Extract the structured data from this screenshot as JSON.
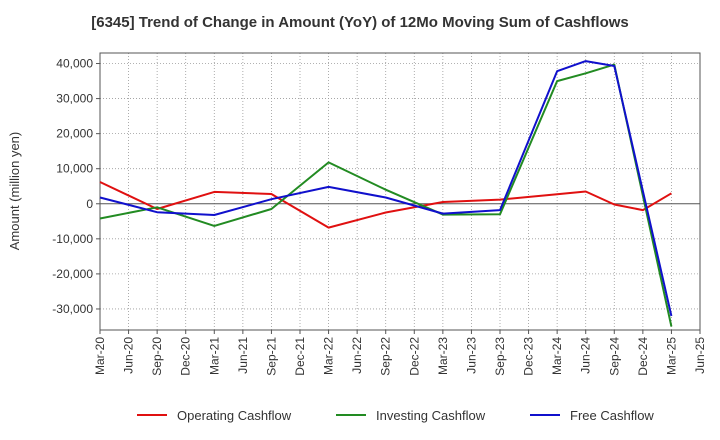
{
  "chart_data": {
    "type": "line",
    "title": "[6345]  Trend of Change in Amount (YoY) of 12Mo Moving Sum of Cashflows",
    "xlabel": "",
    "ylabel": "Amount (million yen)",
    "ylim": [
      -36000,
      43000
    ],
    "yticks": [
      40000,
      30000,
      20000,
      10000,
      0,
      -10000,
      -20000,
      -30000
    ],
    "ytick_labels": [
      "40,000",
      "30,000",
      "20,000",
      "10,000",
      "0",
      "-10,000",
      "-20,000",
      "-30,000"
    ],
    "categories": [
      "Mar-20",
      "Jun-20",
      "Sep-20",
      "Dec-20",
      "Mar-21",
      "Jun-21",
      "Sep-21",
      "Dec-21",
      "Mar-22",
      "Jun-22",
      "Sep-22",
      "Dec-22",
      "Mar-23",
      "Jun-23",
      "Sep-23",
      "Dec-23",
      "Mar-24",
      "Jun-24",
      "Sep-24",
      "Dec-24",
      "Mar-25",
      "Jun-25"
    ],
    "grid": true,
    "legend_position": "bottom",
    "series": [
      {
        "name": "Operating Cashflow",
        "color": "#e01010",
        "values": [
          6200,
          null,
          -1500,
          null,
          3400,
          null,
          2800,
          null,
          -6800,
          null,
          -2500,
          null,
          500,
          null,
          1200,
          null,
          2700,
          3500,
          -200,
          -1800,
          3000,
          null
        ]
      },
      {
        "name": "Investing Cashflow",
        "color": "#228b22",
        "values": [
          -4200,
          null,
          -1000,
          null,
          -6300,
          null,
          -1500,
          null,
          11800,
          null,
          4000,
          null,
          -3100,
          null,
          -3000,
          null,
          35000,
          37200,
          39700,
          null,
          -35000,
          null
        ]
      },
      {
        "name": "Free Cashflow",
        "color": "#1010cc",
        "values": [
          1800,
          null,
          -2400,
          null,
          -3200,
          null,
          1300,
          null,
          4800,
          null,
          1800,
          null,
          -2800,
          null,
          -1800,
          null,
          37800,
          40700,
          39300,
          null,
          -32000,
          null
        ]
      }
    ]
  }
}
